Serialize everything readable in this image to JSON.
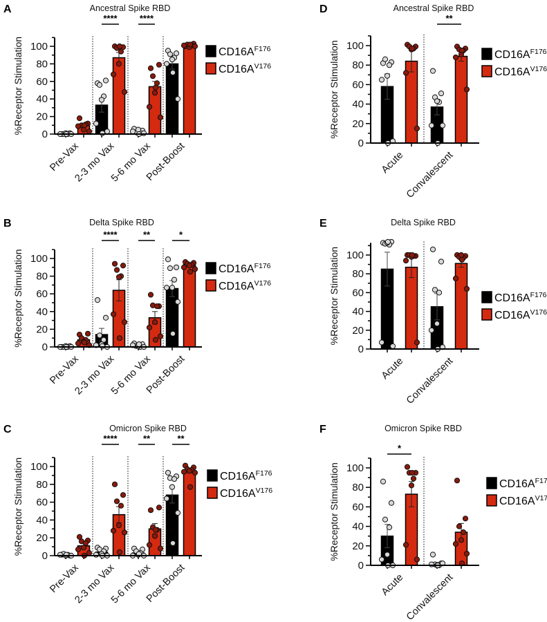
{
  "legend": [
    {
      "base": "CD16A",
      "sup": "F176",
      "bar_color": "#000000",
      "point_color": "#d8d8d8"
    },
    {
      "base": "CD16A",
      "sup": "V176",
      "bar_color": "#d42a10",
      "point_color": "#8a1a0c"
    }
  ],
  "chart_data": [
    {
      "panel": "A",
      "type": "bar",
      "title": "Ancestral Spike RBD",
      "ylabel": "%Receptor Stimulation",
      "ylim": [
        0,
        110
      ],
      "yticks": [
        0,
        20,
        40,
        60,
        80,
        100
      ],
      "categories": [
        "Pre-Vax",
        "2-3 mo Vax",
        "5-6 mo Vax",
        "Post-Boost"
      ],
      "series": [
        {
          "name": "CD16AF176",
          "means": [
            0.5,
            33,
            3,
            80
          ],
          "sem": [
            0.3,
            8,
            1,
            6
          ],
          "points": [
            [
              0,
              1,
              0,
              0,
              1,
              0,
              0,
              0
            ],
            [
              58,
              61,
              56,
              43,
              39,
              12,
              3,
              1
            ],
            [
              6,
              4,
              2,
              1,
              5,
              3,
              1,
              0
            ],
            [
              95,
              92,
              91,
              87,
              85,
              80,
              40,
              70
            ]
          ]
        },
        {
          "name": "CD16AV176",
          "means": [
            10,
            87,
            54,
            101
          ],
          "sem": [
            2,
            6,
            6,
            1
          ],
          "points": [
            [
              18,
              12,
              10,
              11,
              5,
              9,
              3,
              10
            ],
            [
              100,
              99,
              98,
              94,
              80,
              68,
              48,
              100
            ],
            [
              75,
              79,
              66,
              58,
              47,
              31,
              19,
              53
            ],
            [
              100,
              103,
              102,
              101,
              99,
              101,
              100,
              102
            ]
          ]
        }
      ],
      "significance": [
        {
          "category": "2-3 mo Vax",
          "label": "****"
        },
        {
          "category": "5-6 mo Vax",
          "label": "****"
        }
      ]
    },
    {
      "panel": "B",
      "type": "bar",
      "title": "Delta Spike RBD",
      "ylabel": "%Receptor Stimulation",
      "ylim": [
        0,
        110
      ],
      "yticks": [
        0,
        20,
        40,
        60,
        80,
        100
      ],
      "categories": [
        "Pre-Vax",
        "2-3 mo Vax",
        "5-6 mo Vax",
        "Post-Boost"
      ],
      "series": [
        {
          "name": "CD16AF176",
          "means": [
            0.5,
            14,
            2,
            66
          ],
          "sem": [
            0.3,
            7,
            1,
            9
          ],
          "points": [
            [
              0,
              1,
              0,
              0,
              1,
              0,
              0,
              0
            ],
            [
              53,
              33,
              13,
              8,
              3,
              2,
              0,
              1
            ],
            [
              4,
              3,
              1,
              0,
              1,
              2,
              0,
              3
            ],
            [
              99,
              90,
              89,
              76,
              67,
              67,
              51,
              15
            ]
          ]
        },
        {
          "name": "CD16AV176",
          "means": [
            8,
            64,
            33,
            93
          ],
          "sem": [
            2,
            12,
            7,
            1.5
          ],
          "points": [
            [
              14,
              15,
              10,
              8,
              6,
              4,
              2,
              5
            ],
            [
              94,
              92,
              87,
              80,
              79,
              37,
              28,
              10
            ],
            [
              59,
              46,
              47,
              46,
              28,
              22,
              12,
              8
            ],
            [
              96,
              95,
              94,
              93,
              92,
              90,
              88,
              85
            ]
          ]
        }
      ],
      "significance": [
        {
          "category": "2-3 mo Vax",
          "label": "****"
        },
        {
          "category": "5-6 mo Vax",
          "label": "**"
        },
        {
          "category": "Post-Boost",
          "label": "*"
        }
      ]
    },
    {
      "panel": "C",
      "type": "bar",
      "title": "Omicron Spike RBD",
      "ylabel": "%Receptor Stimulation",
      "ylim": [
        0,
        110
      ],
      "yticks": [
        0,
        20,
        40,
        60,
        80,
        100
      ],
      "categories": [
        "Pre-Vax",
        "2-3 mo Vax",
        "5-6 mo Vax",
        "Post-Boost"
      ],
      "series": [
        {
          "name": "CD16AF176",
          "means": [
            1,
            4,
            3,
            68
          ],
          "sem": [
            0.3,
            1.5,
            1,
            9
          ],
          "points": [
            [
              1,
              0,
              2,
              1,
              0,
              1,
              0,
              1
            ],
            [
              9,
              8,
              7,
              5,
              2,
              1,
              0,
              0
            ],
            [
              8,
              7,
              5,
              3,
              1,
              0,
              0,
              2
            ],
            [
              93,
              89,
              87,
              86,
              77,
              64,
              48,
              14
            ]
          ]
        },
        {
          "name": "CD16AV176",
          "means": [
            11,
            46,
            30,
            95
          ],
          "sem": [
            3,
            9,
            6,
            2
          ],
          "points": [
            [
              21,
              17,
              16,
              14,
              9,
              7,
              3,
              0
            ],
            [
              80,
              68,
              61,
              56,
              34,
              28,
              26,
              4
            ],
            [
              51,
              54,
              32,
              29,
              22,
              12,
              8,
              29
            ],
            [
              101,
              99,
              97,
              96,
              95,
              94,
              93,
              77
            ]
          ]
        }
      ],
      "significance": [
        {
          "category": "2-3 mo Vax",
          "label": "****"
        },
        {
          "category": "5-6 mo Vax",
          "label": "**"
        },
        {
          "category": "Post-Boost",
          "label": "**"
        }
      ]
    },
    {
      "panel": "D",
      "type": "bar",
      "title": "Ancestral Spike RBD",
      "ylabel": "%Receptor Stimulation",
      "ylim": [
        0,
        110
      ],
      "yticks": [
        0,
        20,
        40,
        60,
        80,
        100
      ],
      "categories": [
        "Acute",
        "Convalescent"
      ],
      "series": [
        {
          "name": "CD16AF176",
          "means": [
            58,
            37
          ],
          "sem": [
            13,
            8
          ],
          "points": [
            [
              82,
              83,
              86,
              80,
              69,
              65,
              2,
              0
            ],
            [
              74,
              51,
              47,
              42,
              43,
              18,
              18,
              0
            ]
          ]
        },
        {
          "name": "CD16AV176",
          "means": [
            84,
            89
          ],
          "sem": [
            11,
            5
          ],
          "points": [
            [
              101,
              99,
              99,
              97,
              96,
              72,
              15,
              97
            ],
            [
              99,
              97,
              96,
              95,
              91,
              88,
              55,
              95
            ]
          ]
        }
      ],
      "significance": [
        {
          "category": "Convalescent",
          "label": "**"
        }
      ]
    },
    {
      "panel": "E",
      "type": "bar",
      "title": "Delta Spike RBD",
      "ylabel": "%Receptor Stimulation",
      "ylim": [
        0,
        113
      ],
      "yticks": [
        0,
        20,
        40,
        60,
        80,
        100
      ],
      "categories": [
        "Acute",
        "Convalescent"
      ],
      "series": [
        {
          "name": "CD16AF176",
          "means": [
            85,
            45
          ],
          "sem": [
            18,
            14
          ],
          "points": [
            [
              113,
              114,
              112,
              111,
              113,
              7,
              3,
              114
            ],
            [
              106,
              93,
              63,
              60,
              27,
              20,
              2,
              0
            ]
          ]
        },
        {
          "name": "CD16AV176",
          "means": [
            87,
            91
          ],
          "sem": [
            11,
            4
          ],
          "points": [
            [
              100,
              99,
              100,
              99,
              98,
              94,
              7,
              100
            ],
            [
              100,
              99,
              98,
              97,
              100,
              75,
              64,
              95
            ]
          ]
        }
      ],
      "significance": []
    },
    {
      "panel": "F",
      "type": "bar",
      "title": "Omicron Spike RBD",
      "ylabel": "%Receptor Stimulation",
      "ylim": [
        0,
        110
      ],
      "yticks": [
        0,
        20,
        40,
        60,
        80,
        100
      ],
      "categories": [
        "Acute",
        "Convalescent"
      ],
      "series": [
        {
          "name": "CD16AF176",
          "means": [
            30,
            2
          ],
          "sem": [
            12,
            1
          ],
          "points": [
            [
              86,
              64,
              47,
              39,
              11,
              6,
              0,
              0
            ],
            [
              11,
              2,
              1,
              0,
              0,
              1,
              2,
              0
            ]
          ]
        },
        {
          "name": "CD16AV176",
          "means": [
            73,
            34
          ],
          "sem": [
            13,
            9
          ],
          "points": [
            [
              101,
              95,
              95,
              89,
              82,
              21,
              6,
              95
            ],
            [
              87,
              48,
              40,
              34,
              26,
              22,
              12,
              2
            ]
          ]
        }
      ],
      "significance": [
        {
          "category": "Acute",
          "label": "*"
        }
      ]
    }
  ]
}
